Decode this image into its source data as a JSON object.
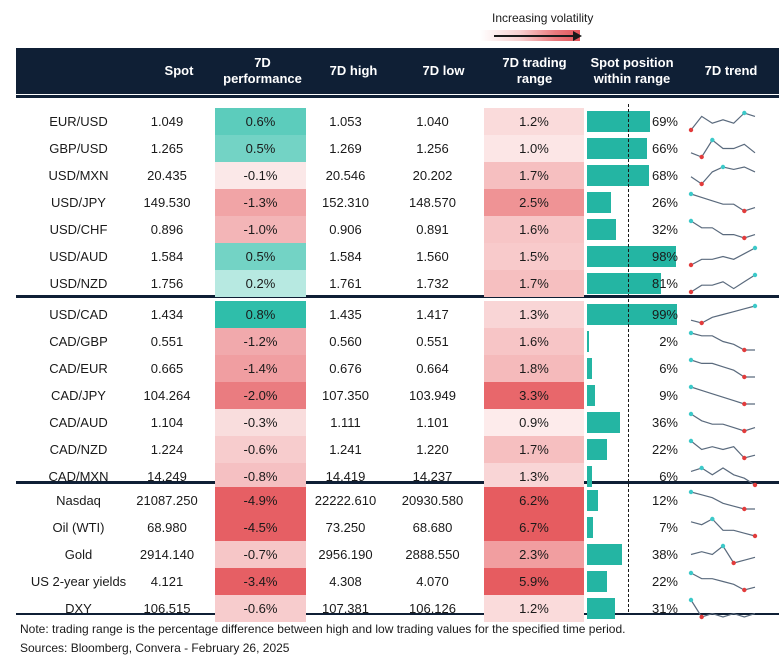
{
  "legend": {
    "label": "Increasing volatility"
  },
  "headers": {
    "spot": "Spot",
    "perf_l1": "7D",
    "perf_l2": "performance",
    "high": "7D high",
    "low": "7D low",
    "range_l1": "7D trading",
    "range_l2": "range",
    "pos_l1": "Spot position",
    "pos_l2": "within range",
    "trend": "7D trend"
  },
  "colors": {
    "header": "#0f1f35",
    "bar": "#24b5a3",
    "trend_line": "#5a6a7d",
    "max_dot": "#3cc9c9",
    "min_dot": "#e23b3b"
  },
  "chart_data": {
    "type": "table",
    "groups": [
      {
        "rows": [
          {
            "name": "EUR/USD",
            "spot": "1.049",
            "perf": "0.6%",
            "perf_v": 0.6,
            "high": "1.053",
            "low": "1.040",
            "range": "1.2%",
            "range_v": 1.2,
            "pos": "69%",
            "pos_v": 69,
            "trend": [
              3,
              7,
              5,
              6,
              5,
              8,
              7
            ]
          },
          {
            "name": "GBP/USD",
            "spot": "1.265",
            "perf": "0.5%",
            "perf_v": 0.5,
            "high": "1.269",
            "low": "1.256",
            "range": "1.0%",
            "range_v": 1.0,
            "pos": "66%",
            "pos_v": 66,
            "trend": [
              5,
              4,
              8,
              6,
              6,
              7,
              5
            ]
          },
          {
            "name": "USD/MXN",
            "spot": "20.435",
            "perf": "-0.1%",
            "perf_v": -0.1,
            "high": "20.546",
            "low": "20.202",
            "range": "1.7%",
            "range_v": 1.7,
            "pos": "68%",
            "pos_v": 68,
            "trend": [
              4,
              1,
              6,
              8,
              7,
              8,
              6
            ]
          },
          {
            "name": "USD/JPY",
            "spot": "149.530",
            "perf": "-1.3%",
            "perf_v": -1.3,
            "high": "152.310",
            "low": "148.570",
            "range": "2.5%",
            "range_v": 2.5,
            "pos": "26%",
            "pos_v": 26,
            "trend": [
              8,
              7,
              6,
              5,
              5,
              3,
              4
            ]
          },
          {
            "name": "USD/CHF",
            "spot": "0.896",
            "perf": "-1.0%",
            "perf_v": -1.0,
            "high": "0.906",
            "low": "0.891",
            "range": "1.6%",
            "range_v": 1.6,
            "pos": "32%",
            "pos_v": 32,
            "trend": [
              8,
              6,
              6,
              4,
              4,
              3,
              4
            ]
          },
          {
            "name": "USD/AUD",
            "spot": "1.584",
            "perf": "0.5%",
            "perf_v": 0.5,
            "high": "1.584",
            "low": "1.560",
            "range": "1.5%",
            "range_v": 1.5,
            "pos": "98%",
            "pos_v": 98,
            "trend": [
              2,
              4,
              4,
              5,
              4,
              6,
              8
            ]
          },
          {
            "name": "USD/NZD",
            "spot": "1.756",
            "perf": "0.2%",
            "perf_v": 0.2,
            "high": "1.761",
            "low": "1.732",
            "range": "1.7%",
            "range_v": 1.7,
            "pos": "81%",
            "pos_v": 81,
            "trend": [
              3,
              5,
              5,
              6,
              4,
              6,
              8
            ]
          }
        ]
      },
      {
        "rows": [
          {
            "name": "USD/CAD",
            "spot": "1.434",
            "perf": "0.8%",
            "perf_v": 0.8,
            "high": "1.435",
            "low": "1.417",
            "range": "1.3%",
            "range_v": 1.3,
            "pos": "99%",
            "pos_v": 99,
            "trend": [
              3,
              2,
              4,
              5,
              6,
              7,
              8
            ]
          },
          {
            "name": "CAD/GBP",
            "spot": "0.551",
            "perf": "-1.2%",
            "perf_v": -1.2,
            "high": "0.560",
            "low": "0.551",
            "range": "1.6%",
            "range_v": 1.6,
            "pos": "2%",
            "pos_v": 2,
            "trend": [
              8,
              7,
              7,
              5,
              4,
              2,
              2
            ]
          },
          {
            "name": "CAD/EUR",
            "spot": "0.665",
            "perf": "-1.4%",
            "perf_v": -1.4,
            "high": "0.676",
            "low": "0.664",
            "range": "1.8%",
            "range_v": 1.8,
            "pos": "6%",
            "pos_v": 6,
            "trend": [
              8,
              7,
              7,
              6,
              5,
              3,
              3
            ]
          },
          {
            "name": "CAD/JPY",
            "spot": "104.264",
            "perf": "-2.0%",
            "perf_v": -2.0,
            "high": "107.350",
            "low": "103.949",
            "range": "3.3%",
            "range_v": 3.3,
            "pos": "9%",
            "pos_v": 9,
            "trend": [
              8,
              7,
              6,
              5,
              4,
              3,
              3
            ]
          },
          {
            "name": "CAD/AUD",
            "spot": "1.104",
            "perf": "-0.3%",
            "perf_v": -0.3,
            "high": "1.111",
            "low": "1.101",
            "range": "0.9%",
            "range_v": 0.9,
            "pos": "36%",
            "pos_v": 36,
            "trend": [
              8,
              6,
              5,
              5,
              4,
              3,
              4
            ]
          },
          {
            "name": "CAD/NZD",
            "spot": "1.224",
            "perf": "-0.6%",
            "perf_v": -0.6,
            "high": "1.241",
            "low": "1.220",
            "range": "1.7%",
            "range_v": 1.7,
            "pos": "22%",
            "pos_v": 22,
            "trend": [
              8,
              5,
              6,
              5,
              6,
              2,
              3
            ]
          },
          {
            "name": "CAD/MXN",
            "spot": "14.249",
            "perf": "-0.8%",
            "perf_v": -0.8,
            "high": "14.419",
            "low": "14.237",
            "range": "1.3%",
            "range_v": 1.3,
            "pos": "6%",
            "pos_v": 6,
            "trend": [
              6,
              7,
              5,
              7,
              5,
              4,
              2
            ]
          }
        ]
      },
      {
        "rows": [
          {
            "name": "Nasdaq",
            "spot": "21087.250",
            "perf": "-4.9%",
            "perf_v": -4.9,
            "high": "22222.610",
            "low": "20930.580",
            "range": "6.2%",
            "range_v": 6.2,
            "pos": "12%",
            "pos_v": 12,
            "trend": [
              8,
              7,
              6,
              4,
              3,
              2,
              2
            ]
          },
          {
            "name": "Oil (WTI)",
            "spot": "68.980",
            "perf": "-4.5%",
            "perf_v": -4.5,
            "high": "73.250",
            "low": "68.680",
            "range": "6.7%",
            "range_v": 6.7,
            "pos": "7%",
            "pos_v": 7,
            "trend": [
              7,
              6,
              8,
              4,
              4,
              3,
              2
            ]
          },
          {
            "name": "Gold",
            "spot": "2914.140",
            "perf": "-0.7%",
            "perf_v": -0.7,
            "high": "2956.190",
            "low": "2888.550",
            "range": "2.3%",
            "range_v": 2.3,
            "pos": "38%",
            "pos_v": 38,
            "trend": [
              5,
              6,
              5,
              8,
              2,
              3,
              4
            ]
          },
          {
            "name": "US 2-year yields",
            "spot": "4.121",
            "perf": "-3.4%",
            "perf_v": -3.4,
            "high": "4.308",
            "low": "4.070",
            "range": "5.9%",
            "range_v": 5.9,
            "pos": "22%",
            "pos_v": 22,
            "trend": [
              8,
              6,
              6,
              5,
              4,
              2,
              3
            ]
          },
          {
            "name": "DXY",
            "spot": "106.515",
            "perf": "-0.6%",
            "perf_v": -0.6,
            "high": "107.381",
            "low": "106.126",
            "range": "1.2%",
            "range_v": 1.2,
            "pos": "31%",
            "pos_v": 31,
            "trend": [
              8,
              3,
              4,
              3,
              4,
              3,
              4
            ]
          }
        ]
      }
    ]
  },
  "footer": {
    "note": "Note: trading range is the percentage difference between high and low trading values for the specified time period.",
    "sources": "Sources: Bloomberg, Convera - February 26, 2025"
  }
}
